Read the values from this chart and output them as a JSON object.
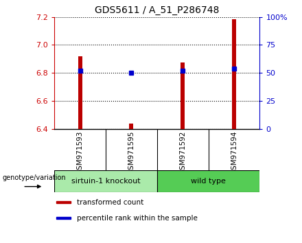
{
  "title": "GDS5611 / A_51_P286748",
  "samples": [
    "GSM971593",
    "GSM971595",
    "GSM971592",
    "GSM971594"
  ],
  "transformed_counts": [
    6.92,
    6.435,
    6.875,
    7.185
  ],
  "percentile_ranks": [
    52,
    50,
    52,
    54
  ],
  "ylim_left": [
    6.4,
    7.2
  ],
  "ylim_right": [
    0,
    100
  ],
  "yticks_left": [
    6.4,
    6.6,
    6.8,
    7.0,
    7.2
  ],
  "yticks_right": [
    0,
    25,
    50,
    75,
    100
  ],
  "ytick_labels_right": [
    "0",
    "25",
    "50",
    "75",
    "100%"
  ],
  "bar_color": "#bb0000",
  "dot_color": "#0000cc",
  "bar_bottom": 6.4,
  "bar_width": 0.08,
  "groups": [
    {
      "label": "sirtuin-1 knockout",
      "indices": [
        0,
        1
      ],
      "color": "#aaeaaa"
    },
    {
      "label": "wild type",
      "indices": [
        2,
        3
      ],
      "color": "#55cc55"
    }
  ],
  "legend_items": [
    {
      "label": "transformed count",
      "color": "#bb0000"
    },
    {
      "label": "percentile rank within the sample",
      "color": "#0000cc"
    }
  ],
  "genotype_label": "genotype/variation",
  "background_label_area": "#c8c8c8",
  "background_plot": "#ffffff"
}
